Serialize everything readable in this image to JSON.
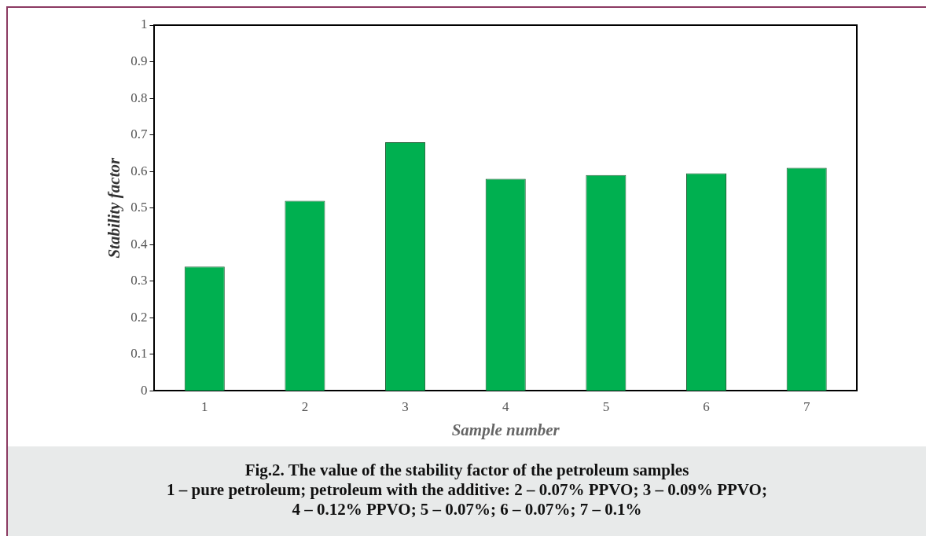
{
  "chart_data": {
    "type": "bar",
    "title": "Fig.2. The value of the stability factor of the petroleum samples",
    "annotations": [
      "1 – pure petroleum; petroleum with the additive: 2 – 0.07% PPVO; 3 – 0.09% PPVO;",
      "4 – 0.12% PPVO; 5 – 0.07%; 6 – 0.07%; 7 – 0.1%"
    ],
    "xlabel": "Sample number",
    "ylabel": "Stability factor",
    "categories": [
      "1",
      "2",
      "3",
      "4",
      "5",
      "6",
      "7"
    ],
    "values": [
      0.34,
      0.52,
      0.68,
      0.58,
      0.59,
      0.595,
      0.61
    ],
    "color": "#00b050",
    "ylim": [
      0,
      1
    ],
    "yticks": [
      0,
      0.1,
      0.2,
      0.3,
      0.4,
      0.5,
      0.6,
      0.7,
      0.8,
      0.9,
      1
    ],
    "grid": false,
    "legend": false
  }
}
